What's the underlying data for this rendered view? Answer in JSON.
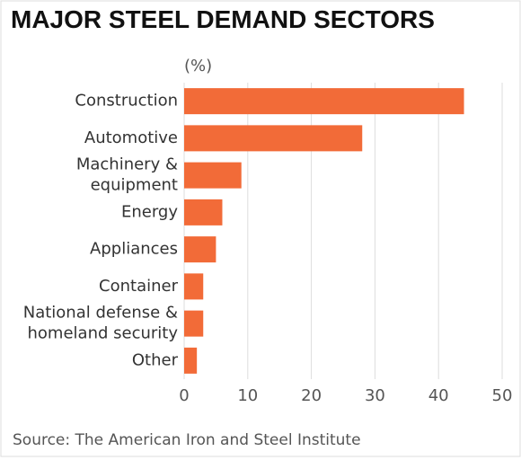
{
  "chart_data": {
    "type": "bar",
    "orientation": "horizontal",
    "title": "MAJOR STEEL DEMAND SECTORS",
    "unit_label": "(%)",
    "categories": [
      "Construction",
      "Automotive",
      "Machinery &\nequipment",
      "Energy",
      "Appliances",
      "Container",
      "National defense &\nhomeland security",
      "Other"
    ],
    "values": [
      44,
      28,
      9,
      6,
      5,
      3,
      3,
      2
    ],
    "color": "#f26b38",
    "xlim": [
      0,
      50
    ],
    "xticks": [
      0,
      10,
      20,
      30,
      40,
      50
    ],
    "grid": true,
    "source": "Source: The American Iron and Steel Institute"
  }
}
